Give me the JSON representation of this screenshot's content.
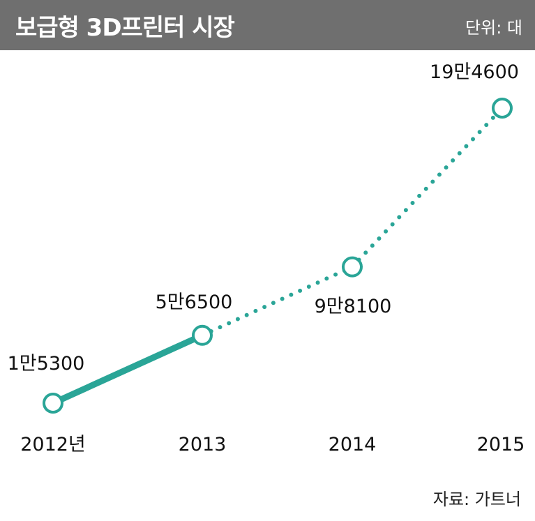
{
  "header": {
    "title": "보급형 3D프린터 시장",
    "unit": "단위: 대"
  },
  "source": "자료: 가트너",
  "chart_data": {
    "type": "line",
    "categories": [
      "2012년",
      "2013",
      "2014",
      "2015"
    ],
    "values": [
      15300,
      56500,
      98100,
      194600
    ],
    "data_labels": [
      "1만5300",
      "5만6500",
      "9만8100",
      "19만4600"
    ],
    "segments": [
      "solid",
      "dotted",
      "dotted"
    ],
    "line_color": "#2aa597",
    "ylim": [
      15300,
      194600
    ],
    "grid": false,
    "legend": "none"
  }
}
